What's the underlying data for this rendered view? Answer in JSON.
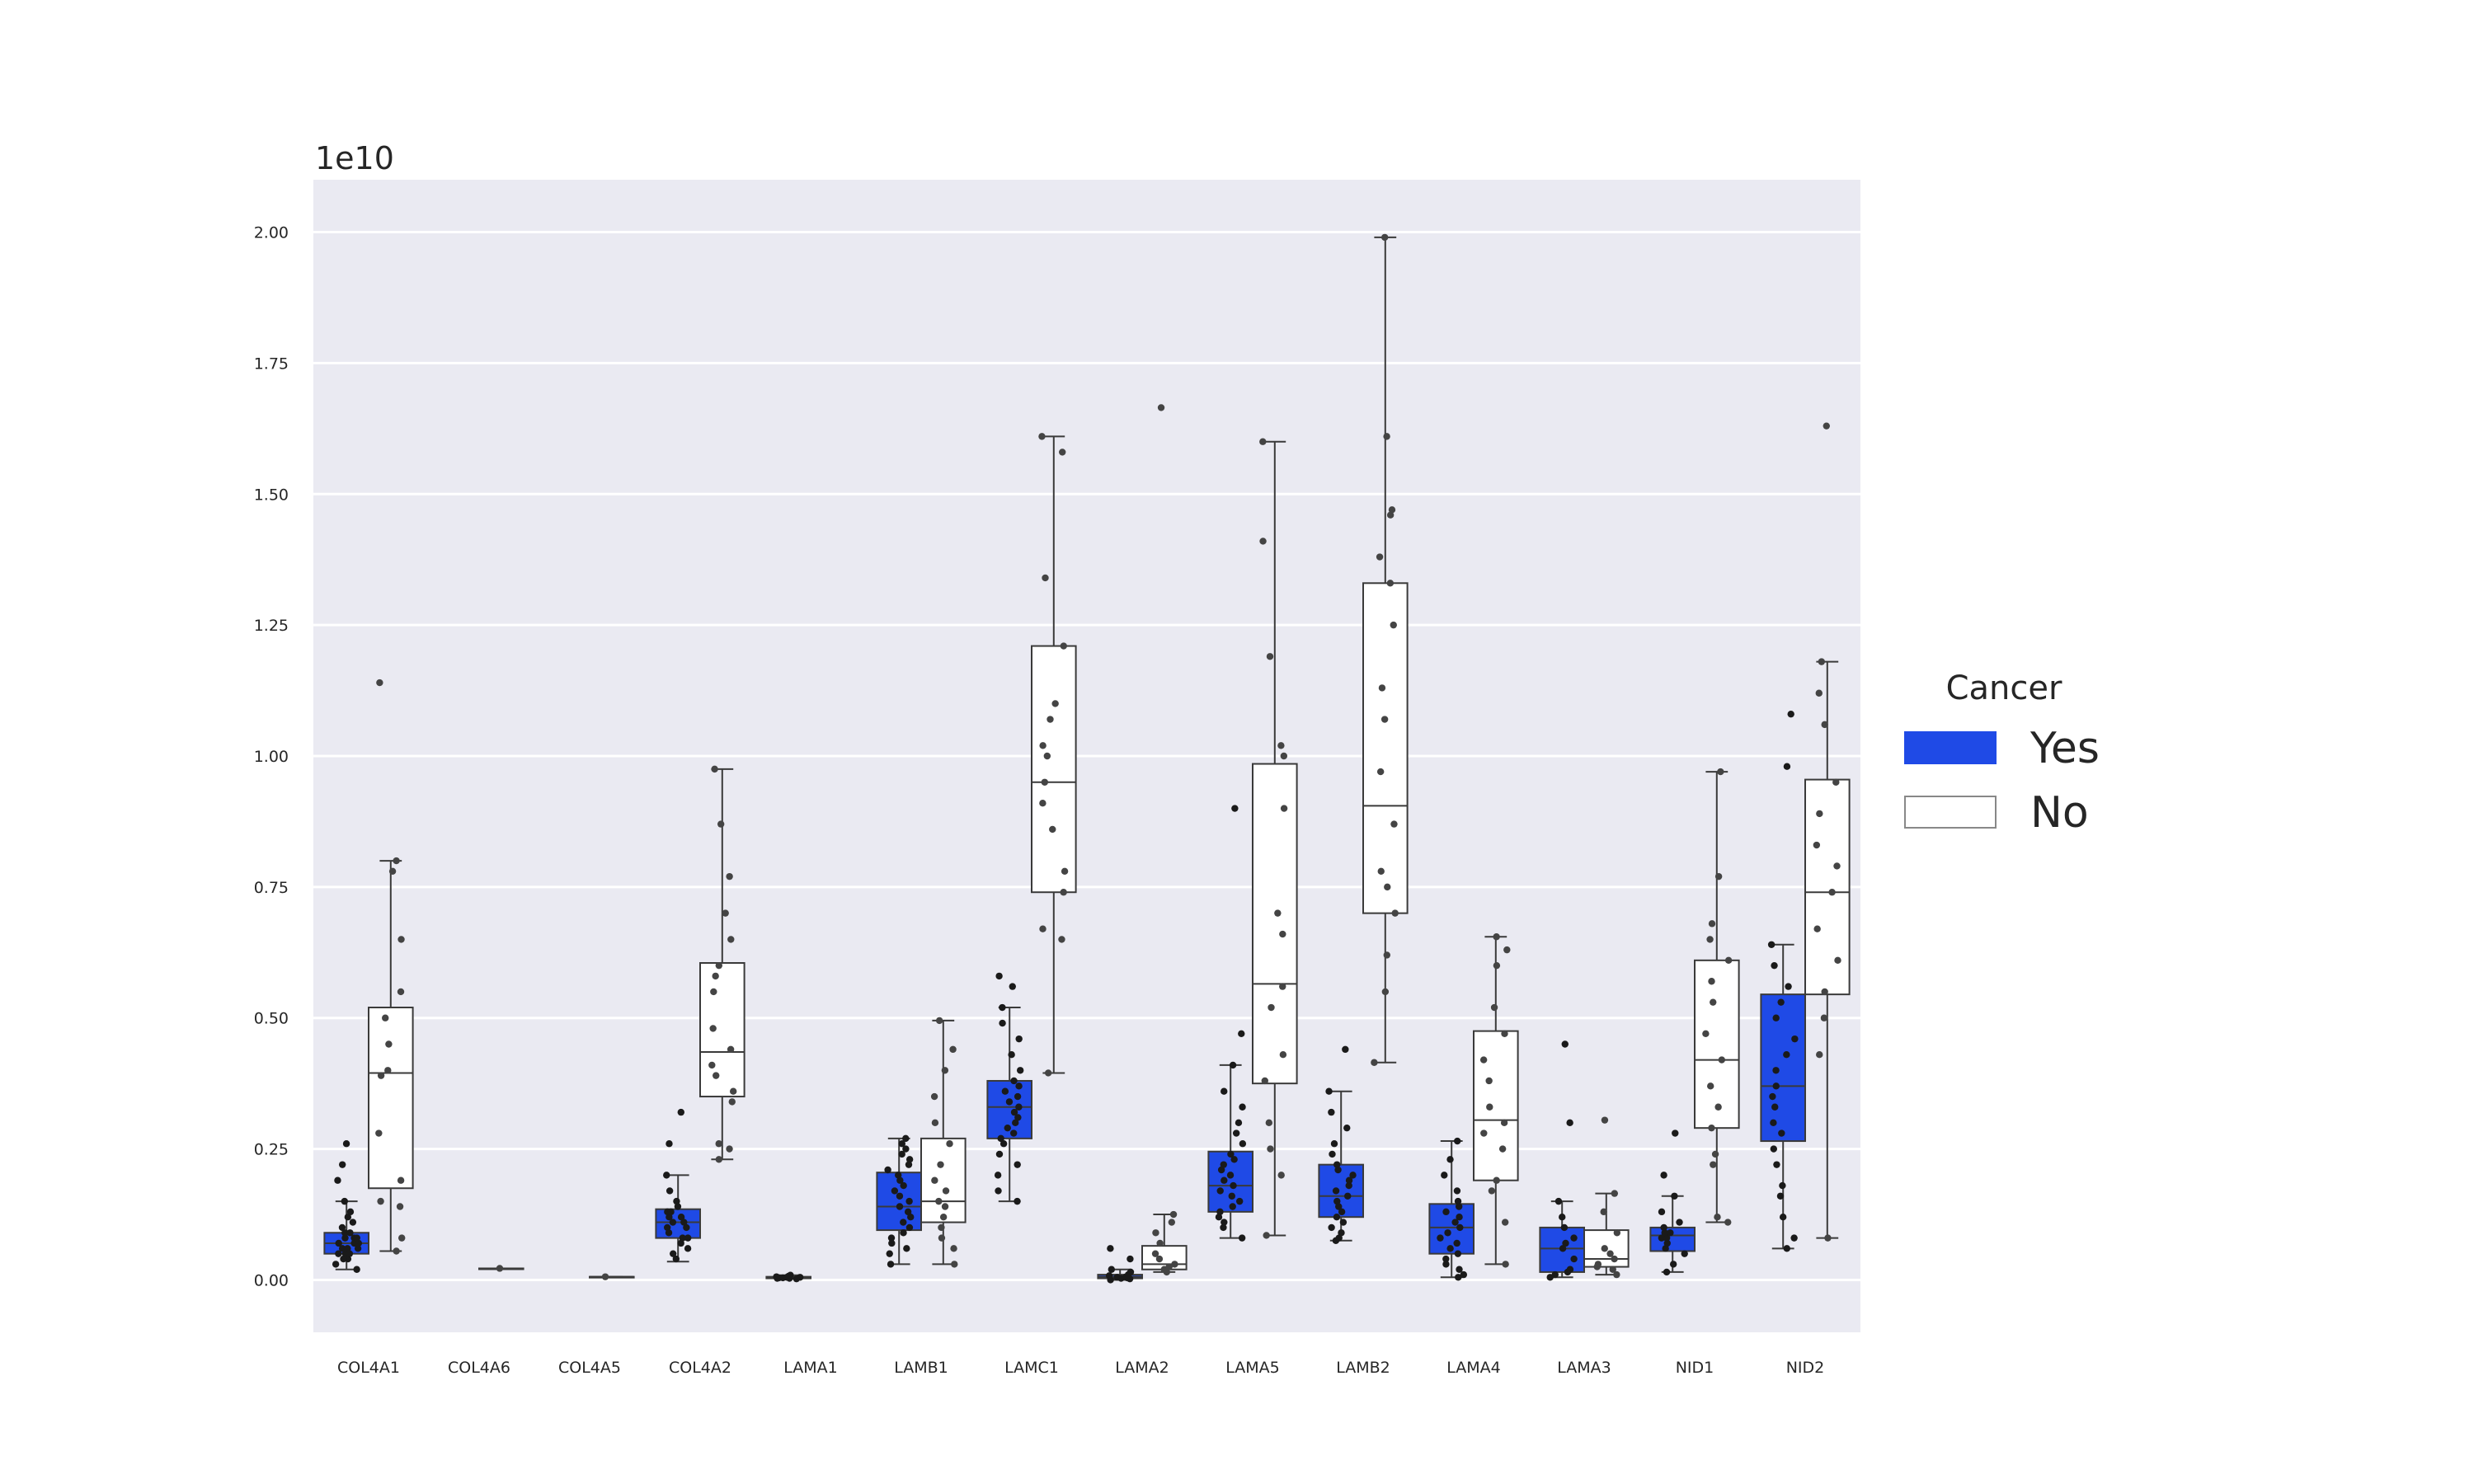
{
  "chart_data": {
    "type": "box",
    "offset_text": "1e10",
    "xlabel": "",
    "ylabel": "",
    "ylim": [
      -0.1,
      2.1
    ],
    "yticks": [
      0.0,
      0.25,
      0.5,
      0.75,
      1.0,
      1.25,
      1.5,
      1.75,
      2.0
    ],
    "ytick_labels": [
      "0.00",
      "0.25",
      "0.50",
      "0.75",
      "1.00",
      "1.25",
      "1.50",
      "1.75",
      "2.00"
    ],
    "grid": true,
    "legend": {
      "title": "Cancer",
      "placement": "right",
      "entries": [
        {
          "label": "Yes",
          "color": "#1f4ae6"
        },
        {
          "label": "No",
          "color": "#ffffff"
        }
      ]
    },
    "categories": [
      "COL4A1",
      "COL4A6",
      "COL4A5",
      "COL4A2",
      "LAMA1",
      "LAMB1",
      "LAMC1",
      "LAMA2",
      "LAMA5",
      "LAMB2",
      "LAMA4",
      "LAMA3",
      "NID1",
      "NID2"
    ],
    "series": [
      {
        "name": "Yes",
        "color": "#1f4ae6",
        "boxes": [
          {
            "category": "COL4A1",
            "whislo": 0.02,
            "q1": 0.05,
            "med": 0.07,
            "q3": 0.09,
            "whishi": 0.15,
            "fliers": [
              0.19,
              0.22,
              0.26
            ],
            "points": [
              0.02,
              0.03,
              0.04,
              0.04,
              0.05,
              0.05,
              0.05,
              0.06,
              0.06,
              0.06,
              0.07,
              0.07,
              0.07,
              0.08,
              0.08,
              0.08,
              0.09,
              0.09,
              0.1,
              0.11,
              0.12,
              0.13,
              0.15,
              0.19,
              0.22,
              0.26
            ]
          },
          {
            "category": "COL4A2",
            "whislo": 0.035,
            "q1": 0.08,
            "med": 0.11,
            "q3": 0.135,
            "whishi": 0.2,
            "fliers": [
              0.26,
              0.32
            ],
            "points": [
              0.04,
              0.05,
              0.06,
              0.07,
              0.08,
              0.08,
              0.09,
              0.1,
              0.1,
              0.11,
              0.11,
              0.12,
              0.12,
              0.13,
              0.13,
              0.14,
              0.15,
              0.17,
              0.2,
              0.26,
              0.32
            ]
          },
          {
            "category": "LAMA1",
            "whislo": 0.002,
            "q1": 0.003,
            "med": 0.004,
            "q3": 0.006,
            "whishi": 0.009,
            "fliers": [],
            "points": [
              0.002,
              0.003,
              0.003,
              0.004,
              0.004,
              0.005,
              0.005,
              0.006,
              0.007,
              0.009
            ]
          },
          {
            "category": "LAMB1",
            "whislo": 0.03,
            "q1": 0.095,
            "med": 0.14,
            "q3": 0.205,
            "whishi": 0.27,
            "fliers": [],
            "points": [
              0.03,
              0.05,
              0.06,
              0.07,
              0.08,
              0.09,
              0.1,
              0.11,
              0.12,
              0.13,
              0.14,
              0.15,
              0.16,
              0.17,
              0.18,
              0.19,
              0.2,
              0.21,
              0.22,
              0.23,
              0.24,
              0.25,
              0.26,
              0.27
            ]
          },
          {
            "category": "LAMC1",
            "whislo": 0.15,
            "q1": 0.27,
            "med": 0.33,
            "q3": 0.38,
            "whishi": 0.52,
            "fliers": [
              0.56,
              0.58
            ],
            "points": [
              0.15,
              0.17,
              0.2,
              0.22,
              0.24,
              0.26,
              0.27,
              0.28,
              0.29,
              0.3,
              0.31,
              0.32,
              0.33,
              0.34,
              0.35,
              0.36,
              0.37,
              0.38,
              0.4,
              0.43,
              0.46,
              0.49,
              0.52,
              0.56,
              0.58
            ]
          },
          {
            "category": "LAMA2",
            "whislo": 0.0,
            "q1": 0.003,
            "med": 0.006,
            "q3": 0.01,
            "whishi": 0.02,
            "fliers": [
              0.04,
              0.06
            ],
            "points": [
              0.0,
              0.002,
              0.003,
              0.004,
              0.005,
              0.006,
              0.008,
              0.01,
              0.015,
              0.02,
              0.04,
              0.06
            ]
          },
          {
            "category": "LAMA5",
            "whislo": 0.08,
            "q1": 0.13,
            "med": 0.18,
            "q3": 0.245,
            "whishi": 0.41,
            "fliers": [
              0.47,
              0.9
            ],
            "points": [
              0.08,
              0.1,
              0.11,
              0.12,
              0.13,
              0.14,
              0.15,
              0.16,
              0.17,
              0.18,
              0.19,
              0.2,
              0.21,
              0.22,
              0.23,
              0.24,
              0.26,
              0.28,
              0.3,
              0.33,
              0.36,
              0.41,
              0.47,
              0.9
            ]
          },
          {
            "category": "LAMB2",
            "whislo": 0.075,
            "q1": 0.12,
            "med": 0.16,
            "q3": 0.22,
            "whishi": 0.36,
            "fliers": [
              0.44
            ],
            "points": [
              0.075,
              0.08,
              0.09,
              0.1,
              0.11,
              0.12,
              0.13,
              0.14,
              0.15,
              0.16,
              0.17,
              0.18,
              0.19,
              0.2,
              0.21,
              0.22,
              0.24,
              0.26,
              0.29,
              0.32,
              0.36,
              0.44
            ]
          },
          {
            "category": "LAMA4",
            "whislo": 0.005,
            "q1": 0.05,
            "med": 0.1,
            "q3": 0.145,
            "whishi": 0.265,
            "fliers": [],
            "points": [
              0.005,
              0.01,
              0.02,
              0.03,
              0.04,
              0.05,
              0.06,
              0.07,
              0.08,
              0.09,
              0.1,
              0.11,
              0.12,
              0.13,
              0.14,
              0.15,
              0.17,
              0.2,
              0.23,
              0.265
            ]
          },
          {
            "category": "LAMA3",
            "whislo": 0.005,
            "q1": 0.015,
            "med": 0.06,
            "q3": 0.1,
            "whishi": 0.15,
            "fliers": [
              0.3,
              0.45
            ],
            "points": [
              0.005,
              0.01,
              0.015,
              0.02,
              0.04,
              0.06,
              0.07,
              0.08,
              0.1,
              0.12,
              0.15,
              0.3,
              0.45
            ]
          },
          {
            "category": "NID1",
            "whislo": 0.015,
            "q1": 0.055,
            "med": 0.085,
            "q3": 0.1,
            "whishi": 0.16,
            "fliers": [
              0.2,
              0.28
            ],
            "points": [
              0.015,
              0.03,
              0.05,
              0.06,
              0.07,
              0.08,
              0.08,
              0.09,
              0.09,
              0.1,
              0.11,
              0.13,
              0.16,
              0.2,
              0.28
            ]
          },
          {
            "category": "NID2",
            "whislo": 0.06,
            "q1": 0.265,
            "med": 0.37,
            "q3": 0.545,
            "whishi": 0.64,
            "fliers": [
              0.98,
              1.08
            ],
            "points": [
              0.06,
              0.08,
              0.12,
              0.16,
              0.18,
              0.22,
              0.25,
              0.28,
              0.3,
              0.33,
              0.35,
              0.37,
              0.4,
              0.43,
              0.46,
              0.5,
              0.53,
              0.56,
              0.6,
              0.64,
              0.98,
              1.08
            ]
          }
        ]
      },
      {
        "name": "No",
        "color": "#ffffff",
        "boxes": [
          {
            "category": "COL4A1",
            "whislo": 0.055,
            "q1": 0.175,
            "med": 0.395,
            "q3": 0.52,
            "whishi": 0.8,
            "fliers": [
              1.14
            ],
            "points": [
              0.055,
              0.08,
              0.14,
              0.15,
              0.19,
              0.28,
              0.39,
              0.4,
              0.45,
              0.5,
              0.55,
              0.65,
              0.78,
              0.8,
              1.14
            ]
          },
          {
            "category": "COL4A6",
            "whislo": 0.022,
            "q1": 0.022,
            "med": 0.022,
            "q3": 0.022,
            "whishi": 0.022,
            "fliers": [],
            "points": [
              0.022
            ]
          },
          {
            "category": "COL4A5",
            "whislo": 0.006,
            "q1": 0.006,
            "med": 0.006,
            "q3": 0.006,
            "whishi": 0.006,
            "fliers": [],
            "points": [
              0.006
            ]
          },
          {
            "category": "COL4A2",
            "whislo": 0.23,
            "q1": 0.35,
            "med": 0.435,
            "q3": 0.605,
            "whishi": 0.975,
            "fliers": [],
            "points": [
              0.23,
              0.25,
              0.26,
              0.34,
              0.36,
              0.39,
              0.41,
              0.44,
              0.48,
              0.55,
              0.58,
              0.6,
              0.65,
              0.7,
              0.77,
              0.87,
              0.975
            ]
          },
          {
            "category": "LAMB1",
            "whislo": 0.03,
            "q1": 0.11,
            "med": 0.15,
            "q3": 0.27,
            "whishi": 0.495,
            "fliers": [],
            "points": [
              0.03,
              0.06,
              0.08,
              0.1,
              0.12,
              0.14,
              0.15,
              0.17,
              0.19,
              0.22,
              0.26,
              0.3,
              0.35,
              0.4,
              0.44,
              0.495
            ]
          },
          {
            "category": "LAMC1",
            "whislo": 0.395,
            "q1": 0.74,
            "med": 0.95,
            "q3": 1.21,
            "whishi": 1.61,
            "fliers": [],
            "points": [
              0.395,
              0.65,
              0.67,
              0.74,
              0.78,
              0.86,
              0.91,
              0.95,
              1.0,
              1.02,
              1.07,
              1.1,
              1.21,
              1.34,
              1.58,
              1.61
            ]
          },
          {
            "category": "LAMA2",
            "whislo": 0.015,
            "q1": 0.02,
            "med": 0.03,
            "q3": 0.065,
            "whishi": 0.125,
            "fliers": [
              1.665
            ],
            "points": [
              0.015,
              0.02,
              0.025,
              0.03,
              0.04,
              0.05,
              0.07,
              0.09,
              0.11,
              0.125,
              1.665
            ]
          },
          {
            "category": "LAMA5",
            "whislo": 0.085,
            "q1": 0.375,
            "med": 0.565,
            "q3": 0.985,
            "whishi": 1.6,
            "fliers": [],
            "points": [
              0.085,
              0.2,
              0.25,
              0.3,
              0.38,
              0.43,
              0.52,
              0.56,
              0.66,
              0.7,
              0.9,
              1.0,
              1.02,
              1.19,
              1.41,
              1.6
            ]
          },
          {
            "category": "LAMB2",
            "whislo": 0.415,
            "q1": 0.7,
            "med": 0.905,
            "q3": 1.33,
            "whishi": 1.99,
            "fliers": [],
            "points": [
              0.415,
              0.55,
              0.62,
              0.7,
              0.75,
              0.78,
              0.87,
              0.97,
              1.07,
              1.13,
              1.25,
              1.33,
              1.38,
              1.46,
              1.47,
              1.61,
              1.99
            ]
          },
          {
            "category": "LAMA4",
            "whislo": 0.03,
            "q1": 0.19,
            "med": 0.305,
            "q3": 0.475,
            "whishi": 0.655,
            "fliers": [],
            "points": [
              0.03,
              0.11,
              0.17,
              0.19,
              0.25,
              0.28,
              0.3,
              0.33,
              0.38,
              0.42,
              0.47,
              0.52,
              0.6,
              0.63,
              0.655
            ]
          },
          {
            "category": "LAMA3",
            "whislo": 0.01,
            "q1": 0.025,
            "med": 0.04,
            "q3": 0.095,
            "whishi": 0.165,
            "fliers": [
              0.305
            ],
            "points": [
              0.01,
              0.02,
              0.025,
              0.03,
              0.04,
              0.05,
              0.06,
              0.09,
              0.13,
              0.165,
              0.305
            ]
          },
          {
            "category": "NID1",
            "whislo": 0.11,
            "q1": 0.29,
            "med": 0.42,
            "q3": 0.61,
            "whishi": 0.97,
            "fliers": [],
            "points": [
              0.11,
              0.12,
              0.22,
              0.24,
              0.29,
              0.33,
              0.37,
              0.42,
              0.47,
              0.53,
              0.57,
              0.61,
              0.65,
              0.68,
              0.77,
              0.97
            ]
          },
          {
            "category": "NID2",
            "whislo": 0.08,
            "q1": 0.545,
            "med": 0.74,
            "q3": 0.955,
            "whishi": 1.18,
            "fliers": [
              1.63
            ],
            "points": [
              0.08,
              0.43,
              0.5,
              0.55,
              0.61,
              0.67,
              0.74,
              0.79,
              0.83,
              0.89,
              0.95,
              1.06,
              1.12,
              1.18,
              1.63
            ]
          }
        ]
      }
    ]
  }
}
